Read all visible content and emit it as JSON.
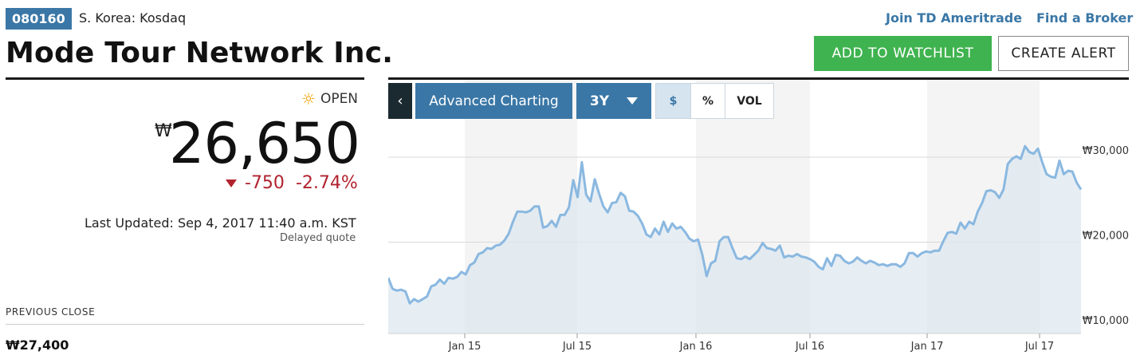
{
  "header": {
    "ticker": "080160",
    "exchange": "S. Korea: Kosdaq",
    "company": "Mode Tour Network Inc.",
    "links": {
      "join": "Join TD Ameritrade",
      "broker": "Find a Broker"
    },
    "buttons": {
      "watchlist": "ADD TO WATCHLIST",
      "alert": "CREATE ALERT"
    }
  },
  "quote": {
    "status": "OPEN",
    "currency_symbol": "₩",
    "price": "26,650",
    "change": "-750",
    "change_percent": "-2.74%",
    "last_updated": "Last Updated: Sep 4, 2017 11:40 a.m. KST",
    "delayed": "Delayed quote",
    "previous_close_label": "PREVIOUS CLOSE",
    "previous_close_value": "₩27,400"
  },
  "colors": {
    "accent": "#3a77a6",
    "green": "#3fb34f",
    "negative": "#b1222e",
    "line": "#8ab8e0",
    "area": "#dde8f0"
  },
  "toolbar": {
    "back_icon": "chevron-left-icon",
    "advanced": "Advanced Charting",
    "range": "3Y",
    "modes": [
      "$",
      "%",
      "VOL"
    ],
    "active_mode": "$"
  },
  "chart_data": {
    "type": "area",
    "xlabel": "",
    "ylabel": "",
    "x_ticks": [
      "Jan 15",
      "Jul 15",
      "Jan 16",
      "Jul 16",
      "Jan 17",
      "Jul 17"
    ],
    "y_ticks": [
      "₩10,000",
      "₩20,000",
      "₩30,000"
    ],
    "ylim": [
      10000,
      32000
    ],
    "grid": true,
    "shaded_bands": [
      "Jan 15–Jul 15",
      "Jan 16–Jul 16",
      "Jan 17–Jul 17"
    ],
    "series": [
      {
        "values": [
          15800,
          14500,
          14300,
          14400,
          14200,
          12800,
          13300,
          13000,
          13300,
          13600,
          14800,
          15000,
          15600,
          15100,
          15800,
          15700,
          15900,
          16500,
          16200,
          17300,
          17600,
          18600,
          18800,
          19300,
          19200,
          19600,
          19700,
          20200,
          21000,
          22400,
          23600,
          23600,
          23500,
          23700,
          24200,
          24200,
          21700,
          21900,
          22500,
          21800,
          23200,
          23200,
          24100,
          27300,
          25300,
          29400,
          25600,
          24800,
          27400,
          25700,
          24200,
          23500,
          24600,
          24700,
          25800,
          25400,
          23700,
          23600,
          23100,
          22200,
          20900,
          20600,
          21600,
          20900,
          22400,
          21200,
          22200,
          21600,
          21800,
          21200,
          20400,
          20100,
          20300,
          18500,
          16000,
          17500,
          17800,
          20100,
          20600,
          20600,
          19300,
          18100,
          18000,
          18300,
          18000,
          18500,
          19000,
          19900,
          19300,
          19200,
          19000,
          19600,
          18200,
          18400,
          18300,
          18600,
          18300,
          18200,
          18000,
          17700,
          17100,
          16800,
          18100,
          17200,
          18500,
          18400,
          17800,
          17500,
          17700,
          18200,
          17800,
          17500,
          17800,
          17600,
          17300,
          17400,
          17200,
          17400,
          17400,
          17100,
          17500,
          18700,
          18700,
          18300,
          18700,
          18900,
          18800,
          19000,
          19000,
          20100,
          21100,
          21200,
          21000,
          22300,
          21600,
          22400,
          22100,
          23600,
          24600,
          26000,
          26100,
          25900,
          25200,
          26200,
          29200,
          29800,
          30100,
          29800,
          31300,
          30600,
          30400,
          31000,
          29400,
          28000,
          27700,
          27600,
          29600,
          28000,
          28400,
          28300,
          27000,
          26200
        ]
      }
    ]
  }
}
